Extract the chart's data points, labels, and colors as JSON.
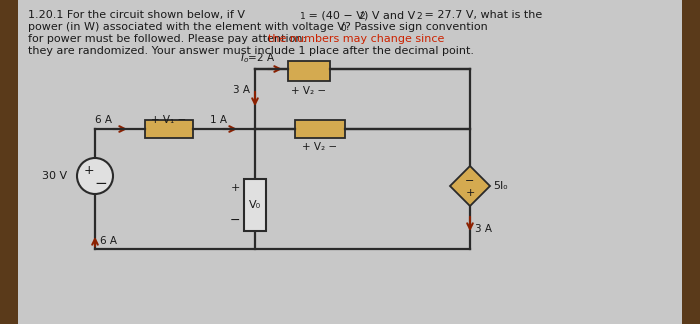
{
  "background_color": "#c8c8c8",
  "panel_color": "#e0e0e0",
  "left_bar_color": "#5a3a1a",
  "right_bar_color": "#5a3a1a",
  "element_fill": "#d4aa50",
  "wire_color": "#2a2a2a",
  "arrow_color": "#8b2000",
  "text_black": "#1a1a1a",
  "text_red": "#cc2200",
  "line1_main": "1.20.1 For the circuit shown below, if V",
  "line1_sub1": "1",
  "line1_mid": " = (40 − V",
  "line1_sub2": "2",
  "line1_end1": ") V and V",
  "line1_sub3": "2",
  "line1_end2": " = 27.7 V, what is the",
  "line2_main": "power (in W) associated with the element with voltage V",
  "line2_sub": "0",
  "line2_end": "? Passive sign convention",
  "line3_black": "for power must be followed. Please pay attention: ",
  "line3_red": "the numbers may change since",
  "line4": "they are randomized. Your answer must include 1 place after the decimal point."
}
